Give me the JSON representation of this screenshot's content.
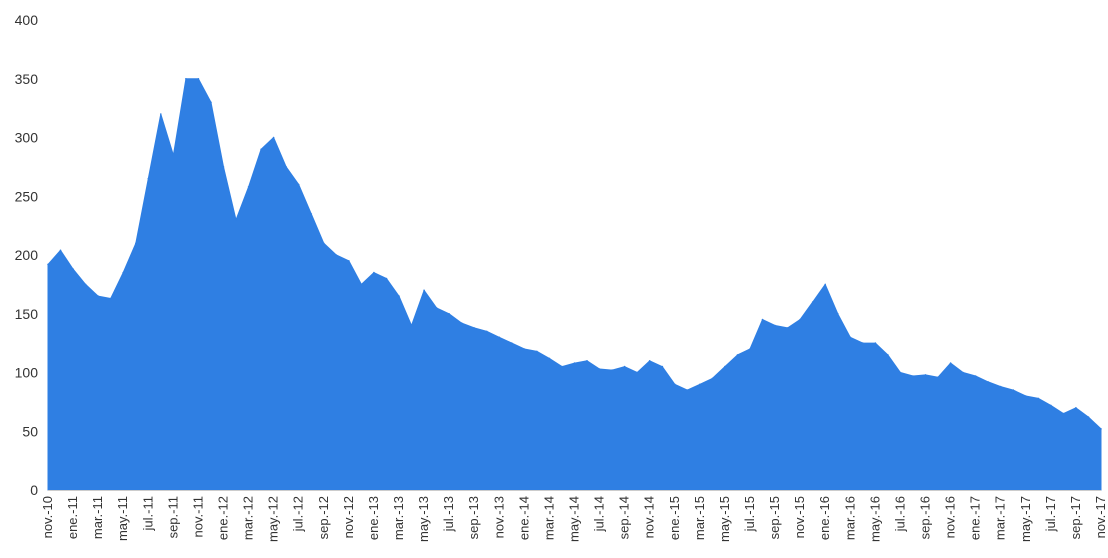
{
  "chart_data": {
    "type": "area",
    "title": "",
    "xlabel": "",
    "ylabel": "",
    "ylim": [
      0,
      400
    ],
    "y_ticks": [
      0,
      50,
      100,
      150,
      200,
      250,
      300,
      350,
      400
    ],
    "grid": false,
    "legend": "none",
    "color": "#2f7fe3",
    "x_tick_labels": [
      "nov.-10",
      "ene.-11",
      "mar.-11",
      "may.-11",
      "jul.-11",
      "sep.-11",
      "nov.-11",
      "ene.-12",
      "mar.-12",
      "may.-12",
      "jul.-12",
      "sep.-12",
      "nov.-12",
      "ene.-13",
      "mar.-13",
      "may.-13",
      "jul.-13",
      "sep.-13",
      "nov.-13",
      "ene.-14",
      "mar.-14",
      "may.-14",
      "jul.-14",
      "sep.-14",
      "nov.-14",
      "ene.-15",
      "mar.-15",
      "may.-15",
      "jul.-15",
      "sep.-15",
      "nov.-15",
      "ene.-16",
      "mar.-16",
      "may.-16",
      "jul.-16",
      "sep.-16",
      "nov.-16",
      "ene.-17",
      "mar.-17",
      "may.-17",
      "jul.-17",
      "sep.-17",
      "nov.-17"
    ],
    "x": [
      "2010-11",
      "2010-12",
      "2011-01",
      "2011-02",
      "2011-03",
      "2011-04",
      "2011-05",
      "2011-06",
      "2011-07",
      "2011-08",
      "2011-09",
      "2011-10",
      "2011-11",
      "2011-12",
      "2012-01",
      "2012-02",
      "2012-03",
      "2012-04",
      "2012-05",
      "2012-06",
      "2012-07",
      "2012-08",
      "2012-09",
      "2012-10",
      "2012-11",
      "2012-12",
      "2013-01",
      "2013-02",
      "2013-03",
      "2013-04",
      "2013-05",
      "2013-06",
      "2013-07",
      "2013-08",
      "2013-09",
      "2013-10",
      "2013-11",
      "2013-12",
      "2014-01",
      "2014-02",
      "2014-03",
      "2014-04",
      "2014-05",
      "2014-06",
      "2014-07",
      "2014-08",
      "2014-09",
      "2014-10",
      "2014-11",
      "2014-12",
      "2015-01",
      "2015-02",
      "2015-03",
      "2015-04",
      "2015-05",
      "2015-06",
      "2015-07",
      "2015-08",
      "2015-09",
      "2015-10",
      "2015-11",
      "2015-12",
      "2016-01",
      "2016-02",
      "2016-03",
      "2016-04",
      "2016-05",
      "2016-06",
      "2016-07",
      "2016-08",
      "2016-09",
      "2016-10",
      "2016-11",
      "2016-12",
      "2017-01",
      "2017-02",
      "2017-03",
      "2017-04",
      "2017-05",
      "2017-06",
      "2017-07",
      "2017-08",
      "2017-09",
      "2017-10",
      "2017-11"
    ],
    "series": [
      {
        "values": [
          192,
          204,
          188,
          175,
          165,
          163,
          185,
          210,
          265,
          320,
          285,
          350,
          350,
          330,
          275,
          230,
          258,
          290,
          300,
          275,
          260,
          235,
          210,
          200,
          195,
          175,
          185,
          180,
          165,
          140,
          170,
          155,
          150,
          142,
          138,
          135,
          130,
          125,
          120,
          118,
          112,
          105,
          108,
          110,
          103,
          102,
          105,
          100,
          110,
          105,
          90,
          85,
          90,
          95,
          105,
          115,
          120,
          145,
          140,
          138,
          145,
          160,
          175,
          150,
          130,
          125,
          125,
          115,
          100,
          97,
          98,
          96,
          108,
          100,
          97,
          92,
          88,
          85,
          80,
          78,
          72,
          65,
          70,
          62,
          52
        ]
      }
    ]
  }
}
